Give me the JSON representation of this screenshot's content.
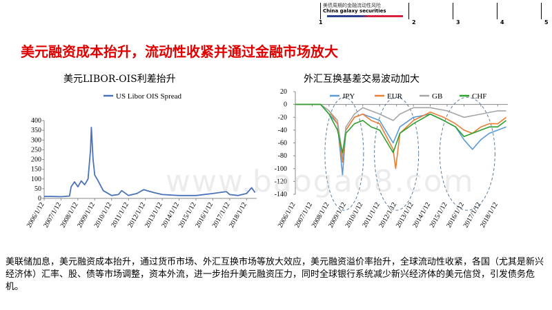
{
  "header": {
    "logo_text": "美债周期的金融流动性风险",
    "logo_sub": "China galaxy securities",
    "nav": [
      "1",
      "2",
      "3",
      "4",
      "5"
    ]
  },
  "slide_title": "美元融资成本抬升，流动性收紧并通过金融市场放大",
  "left_chart": {
    "title": "美元LIBOR-OIS利差抬升"
  },
  "right_chart": {
    "title": "外汇互换基差交易波动加大"
  },
  "watermark": "www.baogao8.com",
  "body_text": "美联储加息，美元融资成本抬升，通过货币市场、外汇互换市场等放大效应，美元融资溢价率抬升，全球流动性收紧，各国（尤其是新兴经济体）汇率、股、债等市场调整，资本外流，进一步抬升美元融资压力，同时全球银行系统减少新兴经济体的美元信贷，引发债务危机。",
  "chart_data": [
    {
      "type": "line",
      "legend_position": "top",
      "x_ticks": [
        "2006/1/12",
        "2007/1/12",
        "2008/1/12",
        "2009/1/12",
        "2010/1/12",
        "2011/1/12",
        "2012/1/12",
        "2013/1/12",
        "2014/1/12",
        "2015/1/12",
        "2016/1/12",
        "2017/1/12",
        "2018/1/12"
      ],
      "ylim": [
        0,
        400
      ],
      "y_ticks": [
        0,
        50,
        100,
        150,
        200,
        250,
        300,
        350,
        400
      ],
      "series": [
        {
          "name": "US  Libor  OIS  Spread",
          "color": "#4a72b8",
          "x": [
            2006.0,
            2006.5,
            2007.0,
            2007.5,
            2007.6,
            2007.8,
            2008.0,
            2008.2,
            2008.4,
            2008.6,
            2008.75,
            2008.8,
            2008.9,
            2009.0,
            2009.2,
            2009.5,
            2010.0,
            2010.4,
            2010.6,
            2011.0,
            2011.5,
            2011.9,
            2012.1,
            2012.5,
            2013.0,
            2014.0,
            2015.0,
            2016.0,
            2016.8,
            2017.0,
            2017.5,
            2018.0,
            2018.3,
            2018.5
          ],
          "y": [
            10,
            10,
            9,
            12,
            60,
            85,
            60,
            90,
            70,
            100,
            250,
            365,
            200,
            120,
            90,
            40,
            15,
            20,
            40,
            15,
            25,
            45,
            40,
            30,
            20,
            15,
            15,
            25,
            35,
            20,
            15,
            25,
            55,
            30
          ]
        }
      ]
    },
    {
      "type": "line",
      "legend_position": "top",
      "x_ticks": [
        "2006/1/12",
        "2007/1/12",
        "2008/1/12",
        "2009/1/12",
        "2010/1/12",
        "2011/1/12",
        "2012/1/12",
        "2013/1/12",
        "2014/1/12",
        "2015/1/12",
        "2016/1/12",
        "2017/1/12",
        "2018/1/12"
      ],
      "ylim": [
        -140,
        20
      ],
      "y_ticks": [
        20,
        0,
        -20,
        -40,
        -60,
        -80,
        -100,
        -120,
        -140
      ],
      "annotations": "dashed ellipses around 2008-2009, 2011-2012, 2015-2017",
      "series": [
        {
          "name": "JPY",
          "color": "#5b9bd5",
          "x": [
            2006.0,
            2007.5,
            2008.0,
            2008.5,
            2008.8,
            2009.0,
            2009.5,
            2010.0,
            2010.5,
            2011.0,
            2011.8,
            2012.2,
            2013.0,
            2014.0,
            2014.8,
            2015.5,
            2016.0,
            2016.5,
            2017.0,
            2017.5,
            2018.0,
            2018.5
          ],
          "y": [
            0,
            0,
            -15,
            -30,
            -110,
            -40,
            -20,
            -15,
            -20,
            -25,
            -60,
            -35,
            -20,
            -15,
            -25,
            -35,
            -55,
            -70,
            -55,
            -45,
            -40,
            -35
          ]
        },
        {
          "name": "EUR",
          "color": "#ed7d31",
          "x": [
            2006.0,
            2007.5,
            2008.0,
            2008.5,
            2008.8,
            2009.0,
            2009.5,
            2010.0,
            2010.5,
            2011.0,
            2011.8,
            2011.95,
            2012.2,
            2013.0,
            2014.0,
            2014.8,
            2015.5,
            2016.0,
            2016.5,
            2017.0,
            2017.5,
            2018.0,
            2018.5
          ],
          "y": [
            0,
            0,
            -10,
            -30,
            -90,
            -40,
            -20,
            -15,
            -25,
            -30,
            -70,
            -100,
            -45,
            -25,
            -12,
            -20,
            -30,
            -40,
            -45,
            -35,
            -30,
            -30,
            -20
          ]
        },
        {
          "name": "GB",
          "color": "#a5a5a5",
          "x": [
            2006.0,
            2007.5,
            2008.0,
            2008.5,
            2008.8,
            2009.0,
            2009.5,
            2010.0,
            2011.0,
            2011.8,
            2012.2,
            2013.0,
            2014.0,
            2015.0,
            2016.0,
            2017.0,
            2018.0,
            2018.5
          ],
          "y": [
            0,
            0,
            -10,
            -25,
            -80,
            -35,
            -15,
            -5,
            -15,
            -25,
            -15,
            -5,
            -5,
            -10,
            -20,
            -15,
            -10,
            -10
          ]
        },
        {
          "name": "CHF",
          "color": "#2ca02c",
          "x": [
            2006.0,
            2007.5,
            2008.0,
            2008.5,
            2008.8,
            2009.0,
            2009.5,
            2010.0,
            2010.5,
            2011.0,
            2011.8,
            2012.2,
            2013.0,
            2014.0,
            2014.8,
            2015.5,
            2016.0,
            2016.5,
            2017.0,
            2017.5,
            2018.0,
            2018.5
          ],
          "y": [
            0,
            0,
            -15,
            -40,
            -75,
            -45,
            -30,
            -25,
            -35,
            -40,
            -75,
            -45,
            -30,
            -15,
            -25,
            -35,
            -50,
            -45,
            -40,
            -35,
            -35,
            -25
          ]
        }
      ]
    }
  ]
}
